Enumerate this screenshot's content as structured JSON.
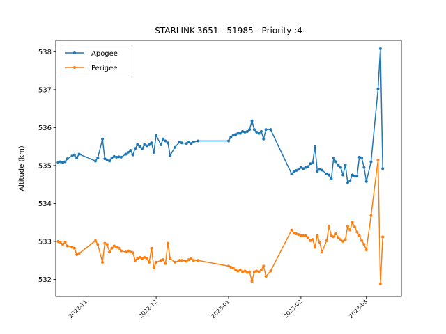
{
  "chart_data": {
    "type": "line",
    "title": "STARLINK-3651 - 51985 - Priority :4",
    "xlabel": "",
    "ylabel": "Altitude (km)",
    "x_ticks": [
      "2022-11",
      "2022-12",
      "2023-01",
      "2023-02",
      "2023-03"
    ],
    "x_tick_dates": [
      "2022-11-01",
      "2022-12-01",
      "2023-01-01",
      "2023-02-01",
      "2023-03-01"
    ],
    "xlim": [
      "2022-10-19",
      "2023-03-16"
    ],
    "y_ticks": [
      532,
      533,
      534,
      535,
      536,
      537,
      538
    ],
    "ylim": [
      531.55,
      538.3
    ],
    "legend_position": "upper-left",
    "grid": false,
    "series": [
      {
        "name": "Apogee",
        "color": "#1f77b4",
        "x": [
          "2022-10-20",
          "2022-10-21",
          "2022-10-22",
          "2022-10-23",
          "2022-10-24",
          "2022-10-26",
          "2022-10-27",
          "2022-10-28",
          "2022-10-29",
          "2022-11-05",
          "2022-11-06",
          "2022-11-08",
          "2022-11-09",
          "2022-11-10",
          "2022-11-11",
          "2022-11-12",
          "2022-11-13",
          "2022-11-14",
          "2022-11-15",
          "2022-11-16",
          "2022-11-18",
          "2022-11-19",
          "2022-11-20",
          "2022-11-21",
          "2022-11-22",
          "2022-11-23",
          "2022-11-24",
          "2022-11-25",
          "2022-11-26",
          "2022-11-27",
          "2022-11-28",
          "2022-11-29",
          "2022-11-30",
          "2022-12-01",
          "2022-12-03",
          "2022-12-04",
          "2022-12-05",
          "2022-12-06",
          "2022-12-07",
          "2022-12-09",
          "2022-12-11",
          "2022-12-12",
          "2022-12-14",
          "2022-12-15",
          "2022-12-16",
          "2022-12-17",
          "2022-12-19",
          "2023-01-01",
          "2023-01-02",
          "2023-01-03",
          "2023-01-04",
          "2023-01-05",
          "2023-01-06",
          "2023-01-07",
          "2023-01-08",
          "2023-01-09",
          "2023-01-10",
          "2023-01-11",
          "2023-01-12",
          "2023-01-13",
          "2023-01-14",
          "2023-01-15",
          "2023-01-16",
          "2023-01-17",
          "2023-01-19",
          "2023-01-28",
          "2023-01-29",
          "2023-01-30",
          "2023-01-31",
          "2023-02-01",
          "2023-02-02",
          "2023-02-03",
          "2023-02-04",
          "2023-02-05",
          "2023-02-06",
          "2023-02-07",
          "2023-02-08",
          "2023-02-09",
          "2023-02-10",
          "2023-02-12",
          "2023-02-13",
          "2023-02-14",
          "2023-02-15",
          "2023-02-16",
          "2023-02-17",
          "2023-02-18",
          "2023-02-19",
          "2023-02-20",
          "2023-02-21",
          "2023-02-22",
          "2023-02-23",
          "2023-02-24",
          "2023-02-25",
          "2023-02-26",
          "2023-02-27",
          "2023-02-28",
          "2023-03-01",
          "2023-03-03",
          "2023-03-06",
          "2023-03-07",
          "2023-03-08"
        ],
        "y": [
          535.08,
          535.1,
          535.08,
          535.1,
          535.18,
          535.25,
          535.28,
          535.2,
          535.3,
          535.12,
          535.2,
          535.7,
          535.18,
          535.15,
          535.12,
          535.2,
          535.24,
          535.22,
          535.23,
          535.22,
          535.3,
          535.35,
          535.4,
          535.28,
          535.45,
          535.55,
          535.5,
          535.45,
          535.55,
          535.52,
          535.55,
          535.6,
          535.35,
          535.8,
          535.55,
          535.7,
          535.65,
          535.6,
          535.27,
          535.48,
          535.62,
          535.6,
          535.58,
          535.62,
          535.58,
          535.62,
          535.65,
          535.65,
          535.75,
          535.8,
          535.82,
          535.85,
          535.85,
          535.9,
          535.88,
          535.9,
          535.95,
          536.18,
          535.95,
          535.88,
          535.85,
          535.9,
          535.7,
          535.95,
          535.95,
          534.78,
          534.85,
          534.87,
          534.9,
          534.95,
          534.92,
          534.95,
          534.97,
          535.05,
          535.08,
          535.5,
          534.85,
          534.9,
          534.88,
          534.78,
          534.75,
          534.65,
          535.2,
          535.1,
          535.0,
          534.95,
          534.75,
          535.02,
          534.55,
          534.6,
          534.75,
          534.72,
          534.72,
          535.22,
          535.2,
          534.95,
          534.58,
          535.1,
          537.02,
          538.08,
          534.92
        ]
      },
      {
        "name": "Perigee",
        "color": "#ff7f0e",
        "x": [
          "2022-10-20",
          "2022-10-21",
          "2022-10-22",
          "2022-10-23",
          "2022-10-24",
          "2022-10-26",
          "2022-10-27",
          "2022-10-28",
          "2022-10-29",
          "2022-11-05",
          "2022-11-06",
          "2022-11-08",
          "2022-11-09",
          "2022-11-10",
          "2022-11-11",
          "2022-11-12",
          "2022-11-13",
          "2022-11-14",
          "2022-11-15",
          "2022-11-16",
          "2022-11-18",
          "2022-11-19",
          "2022-11-20",
          "2022-11-21",
          "2022-11-22",
          "2022-11-23",
          "2022-11-24",
          "2022-11-25",
          "2022-11-26",
          "2022-11-27",
          "2022-11-28",
          "2022-11-29",
          "2022-11-30",
          "2022-12-01",
          "2022-12-03",
          "2022-12-04",
          "2022-12-05",
          "2022-12-06",
          "2022-12-07",
          "2022-12-09",
          "2022-12-11",
          "2022-12-12",
          "2022-12-14",
          "2022-12-15",
          "2022-12-16",
          "2022-12-17",
          "2022-12-19",
          "2023-01-01",
          "2023-01-02",
          "2023-01-03",
          "2023-01-04",
          "2023-01-05",
          "2023-01-06",
          "2023-01-07",
          "2023-01-08",
          "2023-01-09",
          "2023-01-10",
          "2023-01-11",
          "2023-01-12",
          "2023-01-13",
          "2023-01-14",
          "2023-01-15",
          "2023-01-16",
          "2023-01-17",
          "2023-01-19",
          "2023-01-28",
          "2023-01-29",
          "2023-01-30",
          "2023-01-31",
          "2023-02-01",
          "2023-02-02",
          "2023-02-03",
          "2023-02-04",
          "2023-02-05",
          "2023-02-06",
          "2023-02-07",
          "2023-02-08",
          "2023-02-09",
          "2023-02-10",
          "2023-02-12",
          "2023-02-13",
          "2023-02-14",
          "2023-02-15",
          "2023-02-16",
          "2023-02-17",
          "2023-02-18",
          "2023-02-19",
          "2023-02-20",
          "2023-02-21",
          "2023-02-22",
          "2023-02-23",
          "2023-02-24",
          "2023-02-25",
          "2023-02-26",
          "2023-02-27",
          "2023-02-28",
          "2023-03-01",
          "2023-03-03",
          "2023-03-06",
          "2023-03-07",
          "2023-03-08"
        ],
        "y": [
          533.0,
          532.98,
          532.92,
          532.98,
          532.88,
          532.85,
          532.82,
          532.65,
          532.68,
          533.02,
          532.92,
          532.45,
          532.95,
          532.92,
          532.72,
          532.82,
          532.88,
          532.85,
          532.82,
          532.75,
          532.72,
          532.75,
          532.72,
          532.7,
          532.5,
          532.55,
          532.58,
          532.55,
          532.58,
          532.55,
          532.45,
          532.82,
          532.3,
          532.45,
          532.5,
          532.52,
          532.42,
          532.95,
          532.55,
          532.45,
          532.5,
          532.5,
          532.48,
          532.52,
          532.55,
          532.5,
          532.5,
          532.35,
          532.32,
          532.3,
          532.25,
          532.22,
          532.25,
          532.2,
          532.22,
          532.18,
          532.2,
          531.95,
          532.2,
          532.22,
          532.2,
          532.25,
          532.35,
          532.08,
          532.22,
          533.3,
          533.22,
          533.2,
          533.18,
          533.15,
          533.15,
          533.15,
          533.1,
          533.02,
          533.05,
          532.85,
          533.15,
          532.98,
          532.72,
          533.02,
          533.4,
          533.15,
          533.12,
          533.2,
          533.1,
          533.05,
          533.0,
          533.05,
          533.4,
          533.3,
          533.5,
          533.38,
          533.25,
          533.15,
          533.02,
          532.92,
          532.78,
          533.68,
          535.15,
          531.88,
          533.12
        ]
      }
    ]
  }
}
